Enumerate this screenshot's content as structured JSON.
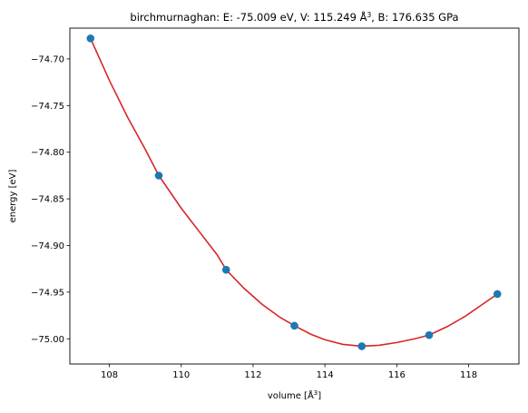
{
  "chart_data": {
    "type": "scatter",
    "title": {
      "prefix": "birchmurnaghan: E: -75.009 eV, V: 115.249 Å",
      "superscript": "3",
      "suffix": ", B: 176.635 GPa"
    },
    "xlabel": {
      "prefix": "volume [Å",
      "superscript": "3",
      "suffix": "]"
    },
    "ylabel": "energy [eV]",
    "xlim": [
      106.9,
      119.4
    ],
    "ylim": [
      -75.027,
      -74.667
    ],
    "xticks": [
      108,
      110,
      112,
      114,
      116,
      118
    ],
    "yticks": [
      -74.7,
      -74.75,
      -74.8,
      -74.85,
      -74.9,
      -74.95,
      -75.0
    ],
    "xtick_labels": [
      "108",
      "110",
      "112",
      "114",
      "116",
      "118"
    ],
    "ytick_labels": [
      "−74.70",
      "−74.75",
      "−74.80",
      "−74.85",
      "−74.90",
      "−74.95",
      "−75.00"
    ],
    "grid": false,
    "series": [
      {
        "kind": "points",
        "color": "#1f77b4",
        "x": [
          107.475,
          109.375,
          111.25,
          113.15,
          115.025,
          116.9,
          118.8
        ],
        "y": [
          -74.678,
          -74.825,
          -74.926,
          -74.986,
          -75.008,
          -74.996,
          -74.952
        ]
      },
      {
        "kind": "fit-line",
        "color": "#d62728",
        "x": [
          107.475,
          108.0,
          108.5,
          109.0,
          109.375,
          110.0,
          110.5,
          111.0,
          111.25,
          111.75,
          112.25,
          112.75,
          113.15,
          113.6,
          114.0,
          114.5,
          115.025,
          115.5,
          116.0,
          116.5,
          116.9,
          117.4,
          117.9,
          118.35,
          118.8
        ],
        "y": [
          -74.678,
          -74.723,
          -74.762,
          -74.797,
          -74.825,
          -74.86,
          -74.885,
          -74.91,
          -74.926,
          -74.946,
          -74.963,
          -74.977,
          -74.986,
          -74.995,
          -75.001,
          -75.006,
          -75.008,
          -75.007,
          -75.004,
          -75.0,
          -74.996,
          -74.987,
          -74.976,
          -74.964,
          -74.952
        ]
      }
    ]
  }
}
